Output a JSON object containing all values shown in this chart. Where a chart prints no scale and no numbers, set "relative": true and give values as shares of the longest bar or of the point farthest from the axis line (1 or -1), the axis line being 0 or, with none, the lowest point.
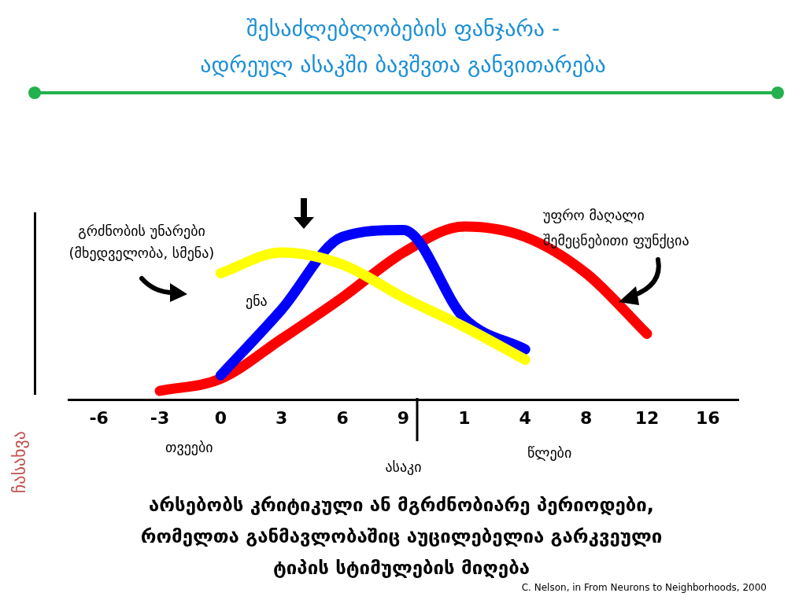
{
  "chart_data": {
    "type": "line",
    "title": "შესაძლებლობების ფანჯარა -\nადრეულ ასაკში ბავშვთა განვითარება",
    "xlabel": "ასაკი",
    "relative": true,
    "categories": [
      "-6",
      "-3",
      "0",
      "3",
      "6",
      "9",
      "1",
      "4",
      "8",
      "12",
      "16"
    ],
    "series": [
      {
        "name": "გრძნობის უნარები\n(მხედველობა, სმენა)",
        "color": "#ffff00",
        "values": [
          null,
          null,
          0.73,
          0.85,
          0.78,
          0.59,
          0.42,
          0.23,
          null,
          null,
          null
        ]
      },
      {
        "name": "ენა",
        "color": "#0000ff",
        "values": [
          null,
          null,
          0.14,
          0.52,
          0.94,
          0.98,
          0.47,
          0.29,
          null,
          null,
          null
        ]
      },
      {
        "name": "უფრო მაღალი\nშემეცნებითი ფუნქცია",
        "color": "#ff0000",
        "values": [
          null,
          0.05,
          0.12,
          0.35,
          0.59,
          0.85,
          1,
          0.94,
          0.73,
          0.38,
          null
        ]
      }
    ],
    "annotations": [
      "თვეები",
      "წლები",
      "ჩასახვა",
      "არსებობს კრიტიკული ან მგრძნობიარე პერიოდები,\nრომელთა განმავლობაშიც აუცილებელია გარკვეული\nტიპის სტიმულების მიღება",
      "C. Nelson, in From Neurons to Neighborhoods, 2000"
    ],
    "grid": false,
    "legend": false,
    "marker": "none",
    "line_style": "solid"
  }
}
